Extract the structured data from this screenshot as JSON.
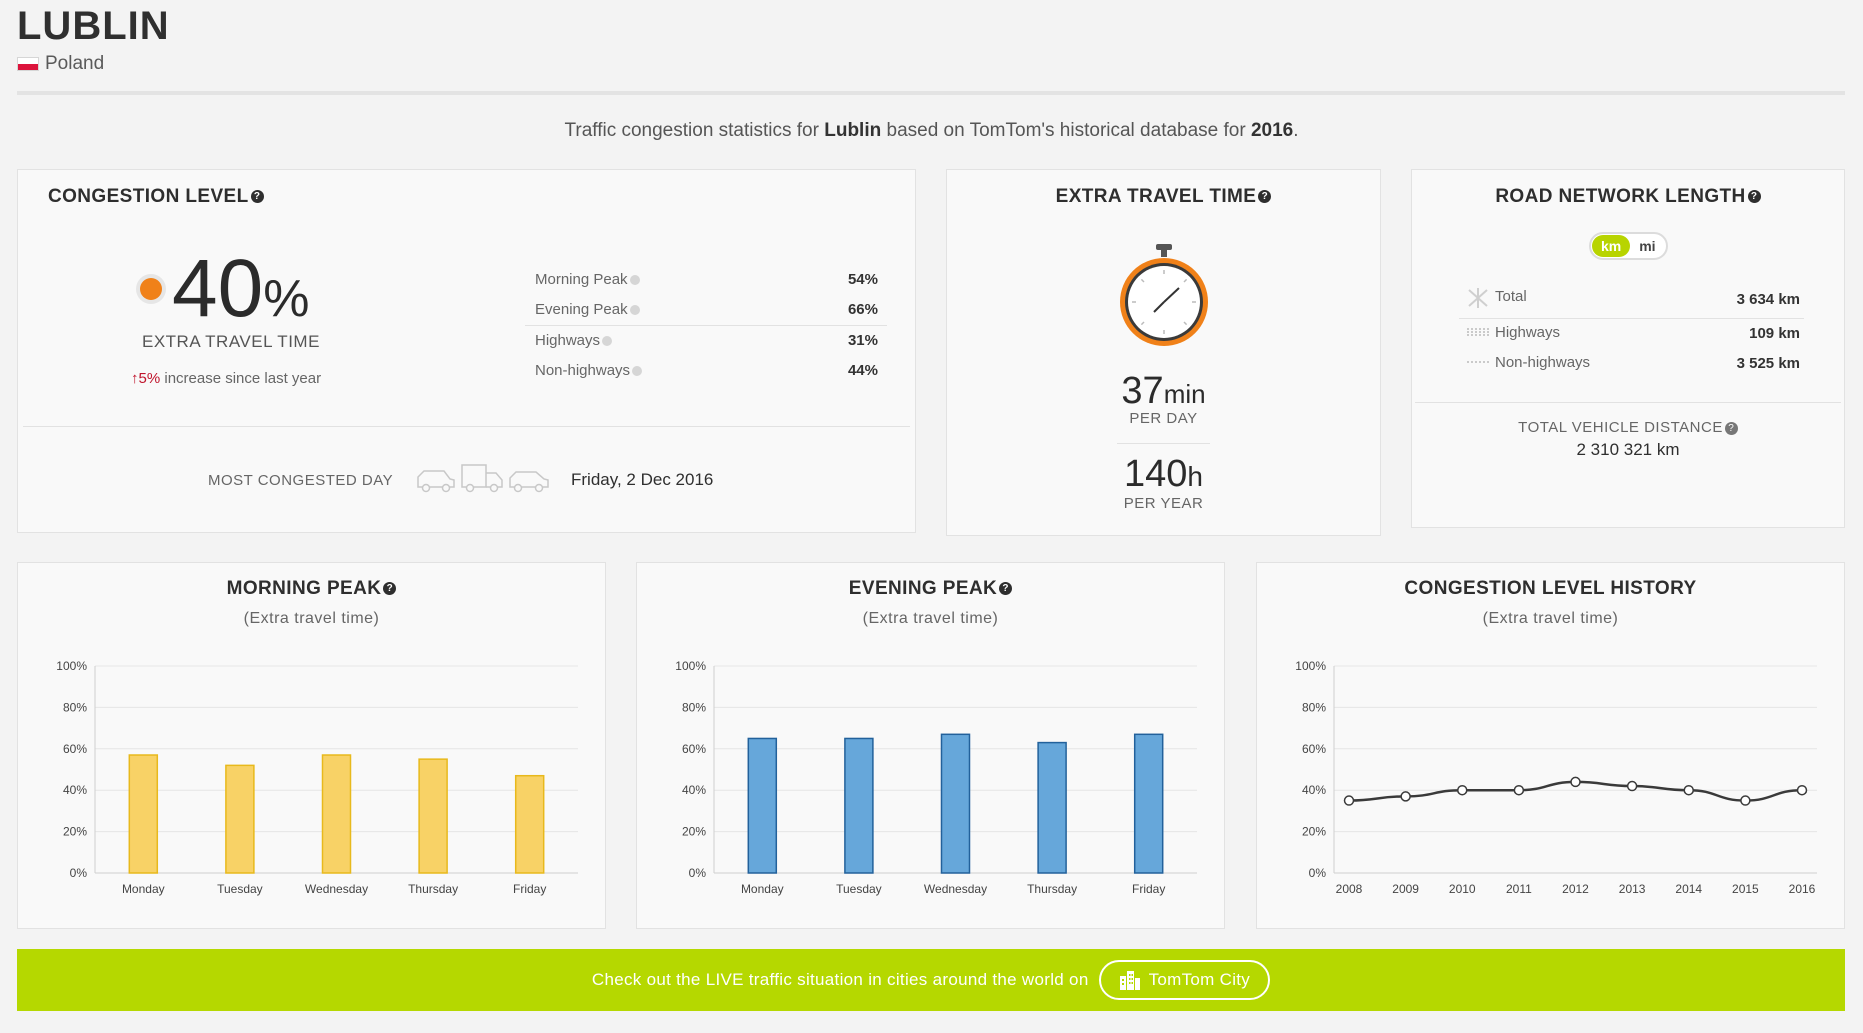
{
  "header": {
    "city": "LUBLIN",
    "country": "Poland",
    "intro_pre": "Traffic congestion statistics for ",
    "intro_city": "Lublin",
    "intro_mid": " based on TomTom's historical database for ",
    "intro_year": "2016",
    "intro_post": "."
  },
  "congestion": {
    "title": "CONGESTION LEVEL",
    "value": "40",
    "unit": "%",
    "caption": "EXTRA TRAVEL TIME",
    "change_value": "5%",
    "change_text": " increase since last year",
    "rows": [
      {
        "label": "Morning Peak",
        "value": "54%"
      },
      {
        "label": "Evening Peak",
        "value": "66%"
      },
      {
        "label": "Highways",
        "value": "31%"
      },
      {
        "label": "Non-highways",
        "value": "44%"
      }
    ],
    "most_congested_label": "MOST CONGESTED DAY",
    "most_congested_value": "Friday, 2 Dec 2016"
  },
  "extra_travel": {
    "title": "EXTRA TRAVEL TIME",
    "per_day_value": "37",
    "per_day_unit": "min",
    "per_day_label": "PER DAY",
    "per_year_value": "140",
    "per_year_unit": "h",
    "per_year_label": "PER YEAR"
  },
  "road_network": {
    "title": "ROAD NETWORK LENGTH",
    "unit_on": "km",
    "unit_off": "mi",
    "rows": [
      {
        "label": "Total",
        "value": "3 634 km"
      },
      {
        "label": "Highways",
        "value": "109 km"
      },
      {
        "label": "Non-highways",
        "value": "3 525 km"
      }
    ],
    "vehicle_distance_label": "TOTAL VEHICLE DISTANCE",
    "vehicle_distance_value": "2 310 321 km"
  },
  "charts": {
    "morning": {
      "title": "MORNING PEAK",
      "subtitle": "(Extra travel time)"
    },
    "evening": {
      "title": "EVENING PEAK",
      "subtitle": "(Extra travel time)"
    },
    "history": {
      "title": "CONGESTION LEVEL HISTORY",
      "subtitle": "(Extra travel time)"
    }
  },
  "chart_data": [
    {
      "type": "bar",
      "title": "MORNING PEAK",
      "subtitle": "(Extra travel time)",
      "categories": [
        "Monday",
        "Tuesday",
        "Wednesday",
        "Thursday",
        "Friday"
      ],
      "values": [
        57,
        52,
        57,
        55,
        47
      ],
      "yticks": [
        "0%",
        "20%",
        "40%",
        "60%",
        "80%",
        "100%"
      ],
      "ylim": [
        0,
        100
      ],
      "color": "#f8d266",
      "stroke": "#e8b91c",
      "grid": true
    },
    {
      "type": "bar",
      "title": "EVENING PEAK",
      "subtitle": "(Extra travel time)",
      "categories": [
        "Monday",
        "Tuesday",
        "Wednesday",
        "Thursday",
        "Friday"
      ],
      "values": [
        65,
        65,
        67,
        63,
        67
      ],
      "yticks": [
        "0%",
        "20%",
        "40%",
        "60%",
        "80%",
        "100%"
      ],
      "ylim": [
        0,
        100
      ],
      "color": "#66a7da",
      "stroke": "#22619b",
      "grid": true
    },
    {
      "type": "line",
      "title": "CONGESTION LEVEL HISTORY",
      "subtitle": "(Extra travel time)",
      "categories": [
        "2008",
        "2009",
        "2010",
        "2011",
        "2012",
        "2013",
        "2014",
        "2015",
        "2016"
      ],
      "values": [
        35,
        37,
        40,
        40,
        44,
        42,
        40,
        35,
        40
      ],
      "yticks": [
        "0%",
        "20%",
        "40%",
        "60%",
        "80%",
        "100%"
      ],
      "ylim": [
        0,
        100
      ],
      "color": "#3a3a3a",
      "grid": true
    }
  ],
  "banner": {
    "text": "Check out the LIVE traffic situation in cities around the world on",
    "button_label": "TomTom City"
  }
}
